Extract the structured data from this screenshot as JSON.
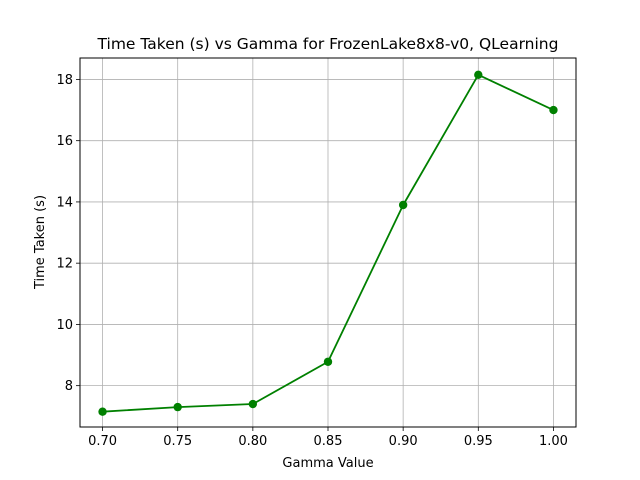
{
  "chart_data": {
    "type": "line",
    "title": "Time Taken (s) vs Gamma for FrozenLake8x8-v0, QLearning",
    "xlabel": "Gamma Value",
    "ylabel": "Time Taken (s)",
    "xlim": [
      0.685,
      1.015
    ],
    "ylim": [
      6.65,
      18.7
    ],
    "xticks": [
      "0.70",
      "0.75",
      "0.80",
      "0.85",
      "0.90",
      "0.95",
      "1.00"
    ],
    "yticks": [
      "8",
      "10",
      "12",
      "14",
      "16",
      "18"
    ],
    "grid": true,
    "series": [
      {
        "color": "#008000",
        "marker": "circle",
        "x": [
          0.7,
          0.75,
          0.8,
          0.85,
          0.9,
          0.95,
          1.0
        ],
        "y": [
          7.15,
          7.3,
          7.4,
          8.78,
          13.9,
          18.15,
          17.0
        ]
      }
    ]
  }
}
